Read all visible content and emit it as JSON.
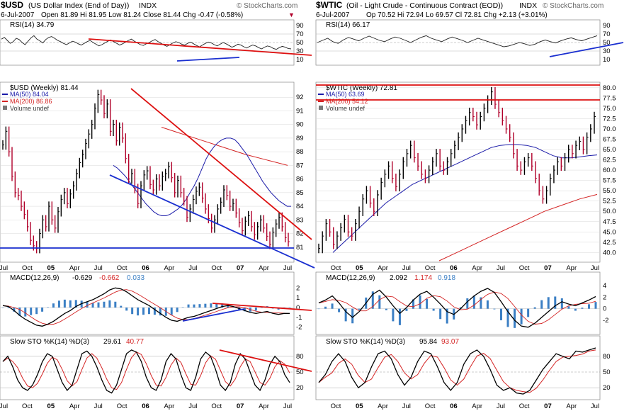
{
  "chart_data": [
    {
      "type": "line",
      "name": "usd",
      "header": {
        "symbol": "$USD",
        "description": "(US Dollar Index (End of Day))",
        "exchange": "INDX",
        "watermark": "© StockCharts.com",
        "date": "6-Jul-2007",
        "ohlc": "Open 81.89  Hi 81.95  Low 81.24  Close 81.44  Chg -0.47 (-0.58%)"
      },
      "x_ticks": [
        "Jul",
        "Oct",
        "05",
        "Apr",
        "Jul",
        "Oct",
        "06",
        "Apr",
        "Jul",
        "Oct",
        "07",
        "Apr",
        "Jul"
      ],
      "rsi": {
        "label": "RSI(14) 34.79",
        "levels": [
          70,
          50,
          30
        ],
        "axis": [
          "90",
          "70",
          "50",
          "30",
          "10"
        ],
        "values": [
          58,
          62,
          55,
          48,
          52,
          60,
          57,
          50,
          45,
          53,
          61,
          66,
          58,
          54,
          49,
          57,
          62,
          64,
          60,
          55,
          52,
          48,
          45,
          49,
          53,
          51,
          47,
          44,
          48,
          52,
          55,
          50,
          46,
          42,
          45,
          49,
          53,
          56,
          52,
          48,
          44,
          47,
          51,
          55,
          58,
          53,
          49,
          45,
          43,
          47,
          50,
          54,
          57,
          52,
          48,
          44,
          41,
          45,
          49,
          52,
          50,
          46,
          44,
          48,
          51,
          47,
          43,
          40,
          44,
          48,
          51,
          49,
          45,
          42,
          46,
          50,
          47,
          43,
          39,
          42,
          46,
          44,
          40,
          37,
          41,
          44,
          42,
          38,
          35,
          39,
          42,
          40,
          36,
          34,
          38,
          41,
          39,
          36,
          35
        ]
      },
      "price": {
        "legend_title": "$USD (Weekly) 81.44",
        "ma50": "MA(50) 84.04",
        "ma200": "MA(200) 86.86",
        "volume": "Volume undef",
        "ylim": [
          80,
          93
        ],
        "y_ticks": [
          81,
          82,
          83,
          84,
          85,
          86,
          87,
          88,
          89,
          90,
          91,
          92
        ],
        "close": [
          88.5,
          89.5,
          88.0,
          86.2,
          85.0,
          84.8,
          84.0,
          83.4,
          82.5,
          81.5,
          81.1,
          80.9,
          82.0,
          83.0,
          82.5,
          84.0,
          83.0,
          82.4,
          83.6,
          84.5,
          85.0,
          84.2,
          84.9,
          85.5,
          86.4,
          87.2,
          87.8,
          88.6,
          89.3,
          90.0,
          91.2,
          92.2,
          91.8,
          90.8,
          91.5,
          89.5,
          90.0,
          88.8,
          89.8,
          89.0,
          87.5,
          86.0,
          86.4,
          85.3,
          84.2,
          85.5,
          86.3,
          86.6,
          85.6,
          85.2,
          86.0,
          85.5,
          86.2,
          86.4,
          86.9,
          86.1,
          85.0,
          85.9,
          85.0,
          84.4,
          83.2,
          83.8,
          84.5,
          85.1,
          85.4,
          84.6,
          83.8,
          83.1,
          82.4,
          83.0,
          83.8,
          84.3,
          85.2,
          84.8,
          84.0,
          84.2,
          83.5,
          82.8,
          82.2,
          82.9,
          83.3,
          82.5,
          81.9,
          82.5,
          83.0,
          82.4,
          81.8,
          81.2,
          82.1,
          82.7,
          83.2,
          82.5,
          81.7,
          81.4
        ],
        "ma50_values": [
          87.0,
          86.8,
          86.5,
          86.2,
          85.8,
          85.4,
          85.0,
          84.6,
          84.2,
          83.9,
          83.6,
          83.4,
          83.3,
          83.3,
          83.4,
          83.6,
          83.8,
          84.1,
          84.5,
          85.0,
          85.5,
          86.1,
          86.8,
          87.5,
          88.0,
          88.4,
          88.7,
          88.9,
          89.0,
          89.0,
          88.9,
          88.6,
          88.2,
          87.8,
          87.3,
          86.8,
          86.3,
          85.8,
          85.4,
          85.0,
          84.7,
          84.4,
          84.2,
          84.0,
          84.0
        ],
        "ma200_values": [
          89.8,
          89.3,
          88.8,
          88.3,
          87.8,
          87.4,
          87.0
        ]
      },
      "macd": {
        "label": "MACD(12,26,9)",
        "macd": "-0.629",
        "signal": "-0.662",
        "hist": "0.033",
        "axis": [
          "2",
          "1",
          "0",
          "-1",
          "-2"
        ],
        "values": [
          0.2,
          0.1,
          -0.3,
          -0.8,
          -1.2,
          -1.5,
          -1.8,
          -1.9,
          -1.7,
          -1.4,
          -1.0,
          -0.6,
          -0.3,
          0.1,
          0.4,
          0.6,
          0.8,
          1.1,
          1.4,
          1.8,
          2.0,
          1.9,
          1.6,
          1.2,
          0.8,
          0.5,
          0.2,
          -0.2,
          -0.6,
          -1.0,
          -1.3,
          -1.4,
          -1.2,
          -1.0,
          -0.9,
          -0.7,
          -0.5,
          -0.3,
          -0.1,
          0.1,
          0.2,
          0.1,
          -0.1,
          -0.3,
          -0.5,
          -0.6,
          -0.5,
          -0.4,
          -0.6,
          -0.7,
          -0.6,
          -0.6
        ]
      },
      "sto": {
        "label": "Slow STO %K(14) %D(3)",
        "k": "29.61",
        "d": "40.77",
        "axis": [
          "80",
          "50",
          "20"
        ],
        "values": [
          70,
          80,
          60,
          35,
          20,
          15,
          25,
          45,
          70,
          85,
          80,
          55,
          30,
          15,
          25,
          55,
          85,
          90,
          80,
          60,
          35,
          15,
          10,
          25,
          55,
          85,
          92,
          88,
          70,
          40,
          20,
          15,
          35,
          70,
          85,
          75,
          45,
          20,
          15,
          40,
          75,
          88,
          80,
          55,
          25,
          15,
          30,
          65,
          85,
          75,
          50,
          25,
          15,
          35,
          65,
          80,
          70,
          45,
          30
        ]
      },
      "annotations": [
        "92",
        "91",
        "90",
        "89",
        "88",
        "87",
        "86",
        "85",
        "84",
        "83",
        "82",
        "81"
      ]
    },
    {
      "type": "line",
      "name": "wtic",
      "header": {
        "symbol": "$WTIC",
        "description": "(Oil - Light Crude - Continuous Contract (EOD))",
        "exchange": "INDX",
        "watermark": "© StockCharts.com",
        "date": "6-Jul-2007",
        "ohlc": "Op 70.52  Hi 72.94  Lo 69.57  Cl 72.81  Chg +2.13 (+3.01%)"
      },
      "x_ticks": [
        "Oct",
        "05",
        "Apr",
        "Jul",
        "Oct",
        "06",
        "Apr",
        "Jul",
        "Oct",
        "07",
        "Apr",
        "Jul"
      ],
      "rsi": {
        "label": "RSI(14) 66.17",
        "levels": [
          70,
          50,
          30
        ],
        "axis": [
          "90",
          "70",
          "50",
          "30",
          "10"
        ],
        "values": [
          50,
          55,
          60,
          52,
          48,
          56,
          62,
          58,
          54,
          60,
          65,
          60,
          55,
          52,
          58,
          63,
          60,
          55,
          50,
          56,
          62,
          66,
          60,
          56,
          52,
          58,
          63,
          59,
          55,
          50,
          55,
          60,
          56,
          52,
          48,
          44,
          40,
          42,
          46,
          50,
          47,
          43,
          46,
          52,
          56,
          52,
          49,
          54,
          58,
          61,
          57,
          54,
          58,
          62,
          66
        ]
      },
      "price": {
        "legend_title": "$WTIC (Weekly) 72.81",
        "ma50": "MA(50) 63.69",
        "ma200": "MA(200) 54.12",
        "volume": "Volume undef",
        "ylim": [
          38,
          81
        ],
        "y_ticks": [
          40,
          42.5,
          45,
          47.5,
          50,
          52.5,
          55,
          57.5,
          60,
          62.5,
          65,
          67.5,
          70,
          72.5,
          75,
          77.5,
          80
        ],
        "close": [
          41,
          44,
          47,
          45,
          42,
          44,
          46,
          48,
          45,
          44,
          47,
          50,
          53,
          55,
          52,
          50,
          54,
          57,
          59,
          61,
          58,
          56,
          59,
          62,
          64,
          66,
          63,
          61,
          59,
          58,
          60,
          62,
          64,
          61,
          60,
          62,
          64,
          66,
          68,
          70,
          72,
          74,
          73,
          71,
          73,
          75,
          77,
          79,
          76,
          74,
          72,
          70,
          68,
          64,
          61,
          60,
          62,
          63,
          61,
          58,
          55,
          53,
          55,
          58,
          60,
          62,
          61,
          63,
          65,
          64,
          66,
          67,
          65,
          68,
          70,
          73
        ],
        "ma50_values": [
          40,
          42,
          44,
          46,
          48,
          50,
          52,
          53.5,
          55,
          56.5,
          57.5,
          58.5,
          59.5,
          60.5,
          61.5,
          62.5,
          63.5,
          64.5,
          65.5,
          66,
          66.2,
          66.2,
          66,
          65.5,
          64.5,
          63.5,
          63,
          63,
          63.2,
          63.5,
          63.7
        ],
        "ma200_values": [
          38,
          40,
          42,
          44,
          46,
          48,
          50,
          51.5,
          53,
          54.1
        ]
      },
      "macd": {
        "label": "MACD(12,26,9)",
        "macd": "2.092",
        "signal": "1.174",
        "hist": "0.918",
        "axis": [
          "4",
          "2",
          "0",
          "-2"
        ],
        "values": [
          1.0,
          1.5,
          2.2,
          1.0,
          -0.5,
          -1.5,
          -0.5,
          1.0,
          2.5,
          3.2,
          2.0,
          0.5,
          -0.8,
          0.2,
          1.5,
          2.5,
          3.0,
          2.0,
          0.8,
          -0.5,
          -1.0,
          0.0,
          1.2,
          2.2,
          3.0,
          3.5,
          2.8,
          1.2,
          -0.5,
          -2.0,
          -3.0,
          -3.2,
          -2.5,
          -1.5,
          -0.5,
          0.5,
          1.2,
          0.8,
          0.5,
          1.0,
          1.5,
          2.1
        ]
      },
      "sto": {
        "label": "Slow STO %K(14) %D(3)",
        "k": "95.84",
        "d": "93.07",
        "axis": [
          "80",
          "50",
          "20"
        ],
        "values": [
          30,
          45,
          70,
          85,
          70,
          40,
          20,
          30,
          60,
          85,
          90,
          75,
          45,
          25,
          40,
          70,
          90,
          85,
          60,
          30,
          15,
          30,
          65,
          85,
          92,
          80,
          55,
          25,
          15,
          20,
          10,
          8,
          15,
          35,
          55,
          70,
          85,
          80,
          75,
          90,
          88,
          92,
          96
        ]
      },
      "annotations": [
        "80.0",
        "77.5",
        "75.0",
        "72.5",
        "70.0",
        "67.5",
        "65.0",
        "62.5",
        "60.0",
        "57.5",
        "55.0",
        "52.5",
        "50.0",
        "47.5",
        "45.0",
        "42.5",
        "40.0"
      ]
    }
  ],
  "colors": {
    "price_line": "#000000",
    "down_bar": "#b0002a",
    "ma50": "#1a1aa8",
    "ma200": "#d42424",
    "trend_red": "#dd1111",
    "trend_blue": "#1a2fd0",
    "hist": "#3b7fc4",
    "grid": "#d8d8d8"
  }
}
